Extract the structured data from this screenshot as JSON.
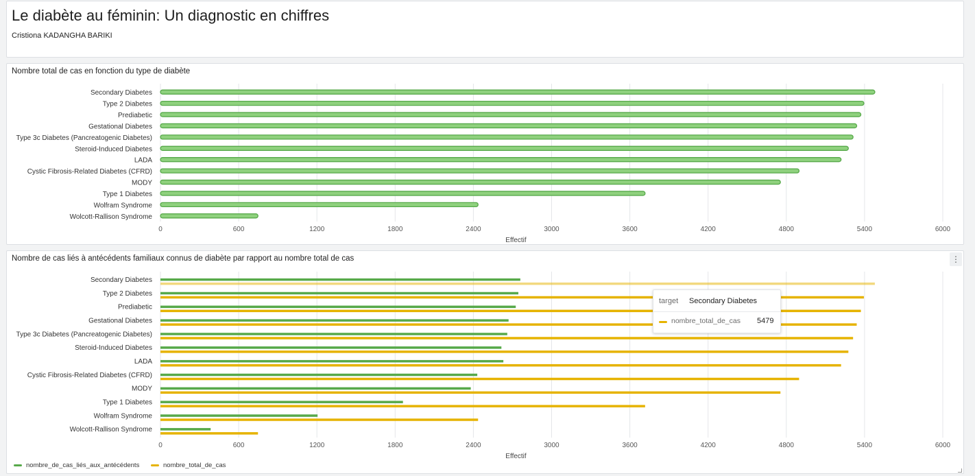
{
  "header": {
    "title": "Le diabète au féminin: Un diagnostic en chiffres",
    "author": "Cristiona KADANGHA BARIKI"
  },
  "chart1": {
    "title": "Nombre total de cas en fonction du type de diabète"
  },
  "chart2": {
    "title": "Nombre de cas liés à antécédents familiaux connus de diabète par rapport au nombre total de cas",
    "menu_icon": "⋮",
    "tooltip": {
      "key_label": "target",
      "target": "Secondary Diabetes",
      "series": "nombre_total_de_cas",
      "value": "5479"
    },
    "legend": [
      "nombre_de_cas_liés_aux_antécédents",
      "nombre_total_de_cas"
    ]
  },
  "colors": {
    "green": "#57a94a",
    "green_light": "#8fd17e",
    "gold": "#e6b300"
  },
  "chart_data": [
    {
      "type": "bar",
      "orientation": "horizontal",
      "title": "Nombre total de cas en fonction du type de diabète",
      "xlabel": "Effectif",
      "ylabel": "",
      "xlim": [
        0,
        6000
      ],
      "xticks": [
        0,
        600,
        1200,
        1800,
        2400,
        3000,
        3600,
        4200,
        4800,
        5400,
        6000
      ],
      "grid": "vertical",
      "categories": [
        "Secondary Diabetes",
        "Type 2 Diabetes",
        "Prediabetic",
        "Gestational Diabetes",
        "Type 3c Diabetes (Pancreatogenic Diabetes)",
        "Steroid-Induced Diabetes",
        "LADA",
        "Cystic Fibrosis-Related Diabetes (CFRD)",
        "MODY",
        "Type 1 Diabetes",
        "Wolfram Syndrome",
        "Wolcott-Rallison Syndrome"
      ],
      "series": [
        {
          "values": [
            5479,
            5395,
            5372,
            5340,
            5312,
            5276,
            5220,
            4898,
            4755,
            3717,
            2436,
            748
          ]
        }
      ]
    },
    {
      "type": "bar",
      "orientation": "horizontal",
      "title": "Nombre de cas liés à antécédents familiaux connus de diabète par rapport au nombre total de cas",
      "xlabel": "Effectif",
      "ylabel": "",
      "xlim": [
        0,
        6000
      ],
      "xticks": [
        0,
        600,
        1200,
        1800,
        2400,
        3000,
        3600,
        4200,
        4800,
        5400,
        6000
      ],
      "grid": "vertical",
      "legend": "bottom-left",
      "categories": [
        "Secondary Diabetes",
        "Type 2 Diabetes",
        "Prediabetic",
        "Gestational Diabetes",
        "Type 3c Diabetes (Pancreatogenic Diabetes)",
        "Steroid-Induced Diabetes",
        "LADA",
        "Cystic Fibrosis-Related Diabetes (CFRD)",
        "MODY",
        "Type 1 Diabetes",
        "Wolfram Syndrome",
        "Wolcott-Rallison Syndrome"
      ],
      "series": [
        {
          "name": "nombre_de_cas_liés_aux_antécédents",
          "values": [
            2760,
            2745,
            2725,
            2670,
            2660,
            2615,
            2630,
            2430,
            2380,
            1860,
            1205,
            385
          ]
        },
        {
          "name": "nombre_total_de_cas",
          "values": [
            5479,
            5395,
            5372,
            5340,
            5312,
            5276,
            5220,
            4898,
            4755,
            3717,
            2436,
            748
          ]
        }
      ]
    }
  ]
}
